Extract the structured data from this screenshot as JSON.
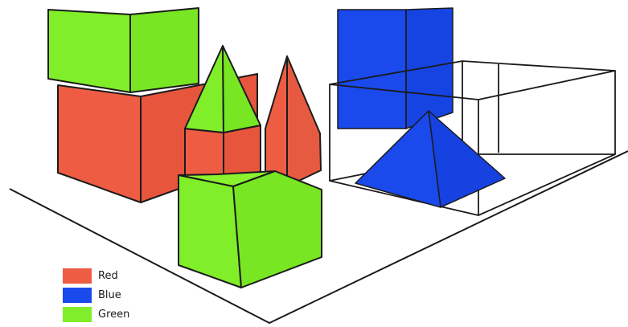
{
  "colors": {
    "red": "#ee5c44",
    "blue": "#1a49ec",
    "green": "#80ee28",
    "outline": "#1b1b1b",
    "background": "#ffffff"
  },
  "legend": {
    "items": [
      {
        "label": "Red",
        "color": "#ee5c44"
      },
      {
        "label": "Blue",
        "color": "#1a49ec"
      },
      {
        "label": "Green",
        "color": "#80ee28"
      }
    ]
  }
}
